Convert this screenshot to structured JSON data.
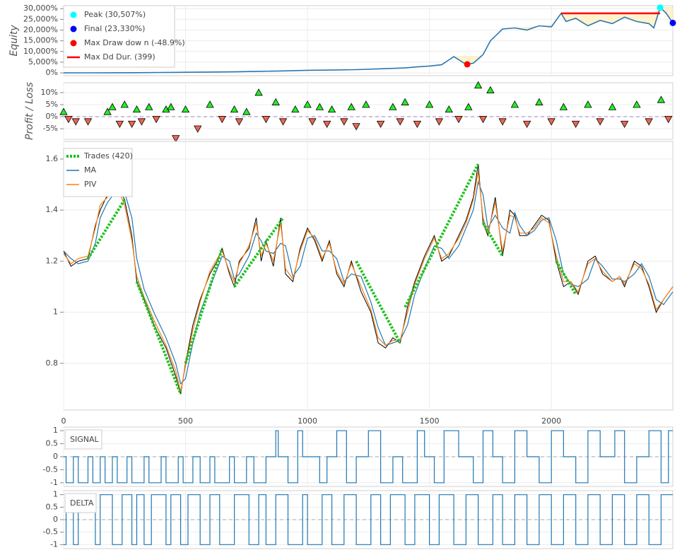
{
  "chart_data": [
    {
      "type": "line",
      "ylabel": "Equity",
      "xlim": [
        0,
        2498
      ],
      "ylim": [
        -1300,
        31400
      ],
      "yticks": [
        {
          "value": 0,
          "label": "0%"
        },
        {
          "value": 5000,
          "label": "5,000%"
        },
        {
          "value": 10000,
          "label": "10,000%"
        },
        {
          "value": 15000,
          "label": "15,000%"
        },
        {
          "value": 20000,
          "label": "20,000%"
        },
        {
          "value": 25000,
          "label": "25,000%"
        },
        {
          "value": 30000,
          "label": "30,000%"
        }
      ],
      "x": [
        0,
        100,
        200,
        300,
        400,
        500,
        600,
        700,
        800,
        900,
        1000,
        1100,
        1200,
        1300,
        1400,
        1450,
        1500,
        1550,
        1600,
        1650,
        1680,
        1700,
        1720,
        1750,
        1800,
        1850,
        1900,
        1950,
        2000,
        2040,
        2060,
        2100,
        2150,
        2200,
        2250,
        2300,
        2350,
        2400,
        2420,
        2446,
        2470,
        2498
      ],
      "values": [
        0,
        30,
        60,
        100,
        200,
        300,
        400,
        500,
        700,
        900,
        1200,
        1300,
        1500,
        1900,
        2300,
        2800,
        3200,
        3800,
        7600,
        4000,
        4500,
        6500,
        8500,
        15000,
        20500,
        21000,
        20000,
        22000,
        21500,
        27800,
        24000,
        25500,
        22000,
        24500,
        23000,
        26000,
        24000,
        23000,
        21000,
        30507,
        28000,
        23330
      ],
      "color": "#2b77b0",
      "fill_color": "#fff2cc",
      "markers": [
        {
          "name": "Peak (30,507%)",
          "color": "#00ffff",
          "x": 2446,
          "value": 30507
        },
        {
          "name": "Final (23,330%)",
          "color": "#0000ff",
          "x": 2498,
          "value": 23330
        },
        {
          "name": "Max Draw dow n (-48.9%)",
          "color": "#ff0000",
          "x": 1655,
          "value": 4000
        }
      ],
      "duration": {
        "name": "Max Dd Dur. (399)",
        "color": "#ff0000",
        "x": [
          2040,
          2446
        ],
        "value": 27800
      }
    },
    {
      "type": "scatter",
      "ylabel": "Profit / Loss",
      "xlim": [
        0,
        2498
      ],
      "ylim": [
        -9.4,
        14.1
      ],
      "yticks": [
        {
          "value": -5,
          "label": "-5%"
        },
        {
          "value": 0,
          "label": "0%"
        },
        {
          "value": 5,
          "label": "5%"
        },
        {
          "value": 10,
          "label": "10%"
        }
      ],
      "x": [
        0,
        20,
        50,
        100,
        180,
        200,
        230,
        250,
        280,
        300,
        320,
        350,
        380,
        420,
        440,
        460,
        500,
        550,
        600,
        650,
        700,
        720,
        750,
        800,
        830,
        870,
        900,
        950,
        1000,
        1020,
        1050,
        1080,
        1100,
        1150,
        1180,
        1200,
        1240,
        1300,
        1350,
        1380,
        1400,
        1450,
        1500,
        1540,
        1580,
        1620,
        1660,
        1700,
        1720,
        1750,
        1800,
        1850,
        1900,
        1950,
        2000,
        2050,
        2100,
        2150,
        2200,
        2250,
        2300,
        2350,
        2400,
        2450,
        2480
      ],
      "values": [
        2,
        -1,
        -2,
        -2,
        2,
        4,
        -3,
        5,
        -3,
        3,
        -2,
        4,
        -1,
        3,
        4,
        -9,
        3,
        -5,
        5,
        -1,
        3,
        -2,
        2,
        10,
        -1,
        6,
        -2,
        3,
        5,
        -2,
        4,
        -3,
        3,
        -2,
        4,
        -4,
        5,
        -3,
        4,
        -2,
        6,
        -3,
        5,
        -2,
        3,
        -1,
        4,
        13,
        -1,
        11,
        -2,
        5,
        -3,
        6,
        -2,
        4,
        -3,
        5,
        -2,
        4,
        -3,
        5,
        -2,
        7,
        -1
      ],
      "pos_color": "#22ee22",
      "neg_color": "#f0644f"
    },
    {
      "type": "line",
      "xlim": [
        0,
        2498
      ],
      "ylim": [
        0.617,
        1.669
      ],
      "yticks": [
        0.8,
        1,
        1.2,
        1.4,
        1.6
      ],
      "xticks": [
        0,
        500,
        1000,
        1500,
        2000
      ],
      "x": [
        0,
        30,
        60,
        100,
        130,
        150,
        180,
        220,
        250,
        280,
        300,
        330,
        370,
        420,
        460,
        480,
        500,
        530,
        560,
        600,
        630,
        650,
        680,
        700,
        720,
        760,
        790,
        810,
        830,
        860,
        890,
        910,
        940,
        970,
        1000,
        1030,
        1060,
        1090,
        1120,
        1150,
        1180,
        1220,
        1260,
        1290,
        1320,
        1350,
        1380,
        1410,
        1440,
        1480,
        1520,
        1550,
        1580,
        1620,
        1650,
        1680,
        1700,
        1720,
        1740,
        1770,
        1800,
        1830,
        1850,
        1870,
        1900,
        1930,
        1960,
        1990,
        2020,
        2050,
        2080,
        2110,
        2150,
        2180,
        2210,
        2250,
        2280,
        2300,
        2340,
        2370,
        2400,
        2430,
        2460,
        2498
      ],
      "price": {
        "color": "#000000",
        "values": [
          1.24,
          1.18,
          1.2,
          1.21,
          1.34,
          1.4,
          1.46,
          1.5,
          1.44,
          1.3,
          1.12,
          1.05,
          0.95,
          0.86,
          0.75,
          0.68,
          0.8,
          0.95,
          1.05,
          1.15,
          1.2,
          1.25,
          1.15,
          1.1,
          1.2,
          1.25,
          1.37,
          1.2,
          1.28,
          1.18,
          1.37,
          1.15,
          1.12,
          1.25,
          1.33,
          1.28,
          1.2,
          1.28,
          1.15,
          1.1,
          1.2,
          1.08,
          1.0,
          0.88,
          0.86,
          0.9,
          0.88,
          1.02,
          1.12,
          1.22,
          1.3,
          1.2,
          1.22,
          1.3,
          1.36,
          1.45,
          1.58,
          1.35,
          1.3,
          1.45,
          1.22,
          1.4,
          1.38,
          1.3,
          1.3,
          1.34,
          1.38,
          1.36,
          1.2,
          1.1,
          1.12,
          1.07,
          1.2,
          1.22,
          1.15,
          1.12,
          1.14,
          1.1,
          1.2,
          1.18,
          1.1,
          1.0,
          1.05,
          1.1
        ]
      },
      "series": [
        {
          "name": "MA",
          "color": "#1f77b4",
          "values": [
            1.24,
            1.21,
            1.19,
            1.2,
            1.27,
            1.37,
            1.43,
            1.48,
            1.47,
            1.37,
            1.21,
            1.09,
            1.0,
            0.9,
            0.8,
            0.72,
            0.74,
            0.88,
            1.0,
            1.1,
            1.17,
            1.22,
            1.2,
            1.13,
            1.15,
            1.22,
            1.31,
            1.28,
            1.24,
            1.23,
            1.27,
            1.26,
            1.14,
            1.18,
            1.29,
            1.3,
            1.24,
            1.24,
            1.21,
            1.12,
            1.15,
            1.14,
            1.04,
            0.94,
            0.87,
            0.88,
            0.89,
            0.95,
            1.07,
            1.17,
            1.26,
            1.25,
            1.21,
            1.26,
            1.33,
            1.4,
            1.51,
            1.46,
            1.33,
            1.38,
            1.33,
            1.31,
            1.39,
            1.34,
            1.3,
            1.32,
            1.36,
            1.37,
            1.28,
            1.15,
            1.11,
            1.1,
            1.13,
            1.21,
            1.18,
            1.13,
            1.13,
            1.12,
            1.15,
            1.19,
            1.14,
            1.05,
            1.03,
            1.08
          ]
        },
        {
          "name": "PIV",
          "color": "#ff7f0e",
          "values": [
            1.23,
            1.19,
            1.21,
            1.22,
            1.33,
            1.42,
            1.45,
            1.49,
            1.42,
            1.28,
            1.14,
            1.06,
            0.97,
            0.87,
            0.77,
            0.69,
            0.79,
            0.93,
            1.04,
            1.16,
            1.21,
            1.24,
            1.16,
            1.12,
            1.19,
            1.26,
            1.35,
            1.22,
            1.27,
            1.2,
            1.35,
            1.17,
            1.13,
            1.24,
            1.32,
            1.29,
            1.21,
            1.27,
            1.16,
            1.11,
            1.19,
            1.1,
            1.01,
            0.9,
            0.87,
            0.89,
            0.89,
            1.0,
            1.11,
            1.21,
            1.29,
            1.21,
            1.23,
            1.29,
            1.35,
            1.44,
            1.55,
            1.37,
            1.31,
            1.43,
            1.24,
            1.38,
            1.37,
            1.31,
            1.31,
            1.33,
            1.37,
            1.35,
            1.22,
            1.12,
            1.12,
            1.08,
            1.19,
            1.21,
            1.16,
            1.12,
            1.14,
            1.11,
            1.19,
            1.17,
            1.11,
            1.01,
            1.05,
            1.1
          ]
        }
      ],
      "trades": {
        "name": "Trades (420)",
        "color": "#1ec31e",
        "x": [
          100,
          250,
          300,
          480,
          500,
          650,
          700,
          900,
          1200,
          1380,
          1400,
          1700,
          1720,
          1800,
          2020,
          2100
        ],
        "values": [
          1.21,
          1.44,
          1.12,
          0.68,
          0.8,
          1.25,
          1.1,
          1.37,
          1.2,
          0.88,
          1.02,
          1.58,
          1.35,
          1.22,
          1.2,
          1.07
        ]
      }
    },
    {
      "type": "step",
      "label": "SIGNAL",
      "xlim": [
        0,
        2498
      ],
      "ylim": [
        -1.14,
        1.14
      ],
      "yticks": [
        -1,
        -0.5,
        0,
        0.5,
        1
      ],
      "color": "#1f77b4",
      "x": [
        0,
        10,
        40,
        60,
        100,
        120,
        150,
        170,
        200,
        220,
        260,
        280,
        330,
        350,
        400,
        420,
        470,
        490,
        530,
        560,
        600,
        620,
        680,
        700,
        750,
        780,
        830,
        870,
        880,
        920,
        960,
        980,
        1050,
        1080,
        1120,
        1160,
        1200,
        1250,
        1300,
        1350,
        1390,
        1450,
        1480,
        1520,
        1560,
        1620,
        1680,
        1720,
        1760,
        1800,
        1850,
        1900,
        1950,
        2000,
        2050,
        2100,
        2150,
        2200,
        2260,
        2300,
        2350,
        2400,
        2450,
        2480
      ],
      "values": [
        0,
        -1,
        0,
        -1,
        0,
        -1,
        0,
        -1,
        0,
        -1,
        0,
        -1,
        0,
        -1,
        0,
        -1,
        0,
        -1,
        0,
        -1,
        0,
        -1,
        0,
        -1,
        0,
        -1,
        0,
        1,
        0,
        -1,
        1,
        0,
        -1,
        0,
        1,
        -1,
        0,
        1,
        -1,
        0,
        -1,
        1,
        0,
        -1,
        1,
        0,
        -1,
        1,
        0,
        -1,
        1,
        0,
        -1,
        1,
        0,
        -1,
        1,
        0,
        1,
        -1,
        0,
        1,
        -1,
        1
      ]
    },
    {
      "type": "step",
      "label": "DELTA",
      "xlim": [
        0,
        2498
      ],
      "ylim": [
        -1.16,
        1.16
      ],
      "yticks": [
        -1,
        -0.5,
        0,
        0.5,
        1
      ],
      "color": "#1f77b4",
      "x": [
        0,
        10,
        40,
        60,
        130,
        150,
        200,
        240,
        280,
        300,
        330,
        360,
        420,
        440,
        480,
        510,
        560,
        600,
        640,
        700,
        760,
        800,
        830,
        870,
        920,
        980,
        1000,
        1060,
        1100,
        1150,
        1200,
        1260,
        1300,
        1340,
        1400,
        1440,
        1500,
        1540,
        1600,
        1650,
        1700,
        1760,
        1800,
        1850,
        1900,
        1950,
        2000,
        2050,
        2100,
        2150,
        2200,
        2250,
        2300,
        2350,
        2400,
        2450
      ],
      "values": [
        -1,
        1,
        -1,
        1,
        -1,
        1,
        -1,
        1,
        -1,
        1,
        -1,
        1,
        -1,
        1,
        -1,
        1,
        -1,
        1,
        -1,
        1,
        -1,
        1,
        -1,
        1,
        -1,
        1,
        -1,
        1,
        -1,
        1,
        -1,
        1,
        -1,
        1,
        -1,
        1,
        -1,
        1,
        -1,
        1,
        -1,
        1,
        -1,
        1,
        -1,
        1,
        -1,
        1,
        -1,
        1,
        -1,
        1,
        -1,
        1,
        -1,
        1
      ]
    }
  ]
}
